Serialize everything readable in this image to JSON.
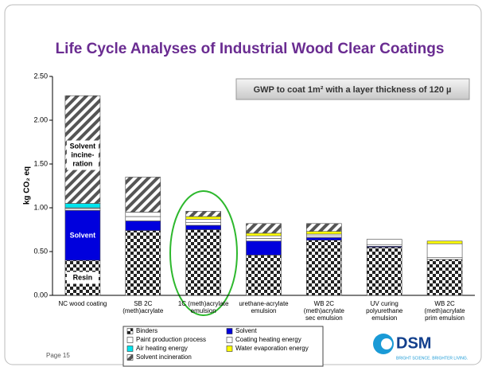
{
  "chart_data": {
    "type": "stacked-bar",
    "title": "Life Cycle Analyses of Industrial Wood Clear Coatings",
    "note": "GWP to coat 1m² with a  layer thickness of 120 µ",
    "ylabel": "kg CO₂ eq",
    "categories": [
      [
        "NC wood coating"
      ],
      [
        "SB 2C",
        "(meth)acrylate"
      ],
      [
        "1C (meth)acrylate",
        "emulsion"
      ],
      [
        "urethane-acrylate",
        "emulsion"
      ],
      [
        "WB 2C",
        "(meth)acrylate",
        "sec emulsion"
      ],
      [
        "UV curing",
        "polyurethane",
        "emulsion"
      ],
      [
        "WB 2C",
        "(meth)acrylate",
        "prim emulsion"
      ]
    ],
    "series": [
      {
        "name": "Binders",
        "color": "#222222",
        "pattern": "checker",
        "values": [
          0.4,
          0.74,
          0.75,
          0.46,
          0.63,
          0.55,
          0.41
        ]
      },
      {
        "name": "Solvent",
        "color": "#0000dd",
        "values": [
          0.57,
          0.11,
          0.05,
          0.16,
          0.03,
          0.01,
          0
        ]
      },
      {
        "name": "Paint production process",
        "color": "#ffffff",
        "values": [
          0.02,
          0.05,
          0.03,
          0.03,
          0.02,
          0.02,
          0.02
        ]
      },
      {
        "name": "Coating heating energy",
        "color": "#ffffff",
        "values": [
          0.01,
          0.05,
          0.04,
          0.03,
          0.02,
          0.06,
          0.16
        ]
      },
      {
        "name": "Air heating energy",
        "color": "#00e5ee",
        "values": [
          0.05,
          0,
          0,
          0,
          0,
          0,
          0
        ]
      },
      {
        "name": "Water evaporation energy",
        "color": "#ffff00",
        "values": [
          0,
          0,
          0.03,
          0.03,
          0.03,
          0,
          0.03
        ]
      },
      {
        "name": "Solvent incineration",
        "color": "#555555",
        "pattern": "hatch",
        "values": [
          1.23,
          0.4,
          0.06,
          0.11,
          0.09,
          0,
          0
        ]
      }
    ],
    "annotations": [
      [
        "Solvent",
        "incine-",
        "ration"
      ],
      [
        "Solvent"
      ],
      [
        "Resin"
      ]
    ],
    "ylim": [
      0,
      2.5
    ],
    "yticks": [
      {
        "value": 0,
        "label": "0.00"
      },
      {
        "value": 0.5,
        "label": "0.50"
      },
      {
        "value": 1,
        "label": "1.00"
      },
      {
        "value": 1.5,
        "label": "1.50"
      },
      {
        "value": 2,
        "label": "2.00"
      },
      {
        "value": 2.5,
        "label": "2.50"
      }
    ],
    "page": "Page  15",
    "logo": "DSM",
    "slogan": "BRIGHT SCIENCE. BRIGHTER LIVING."
  }
}
